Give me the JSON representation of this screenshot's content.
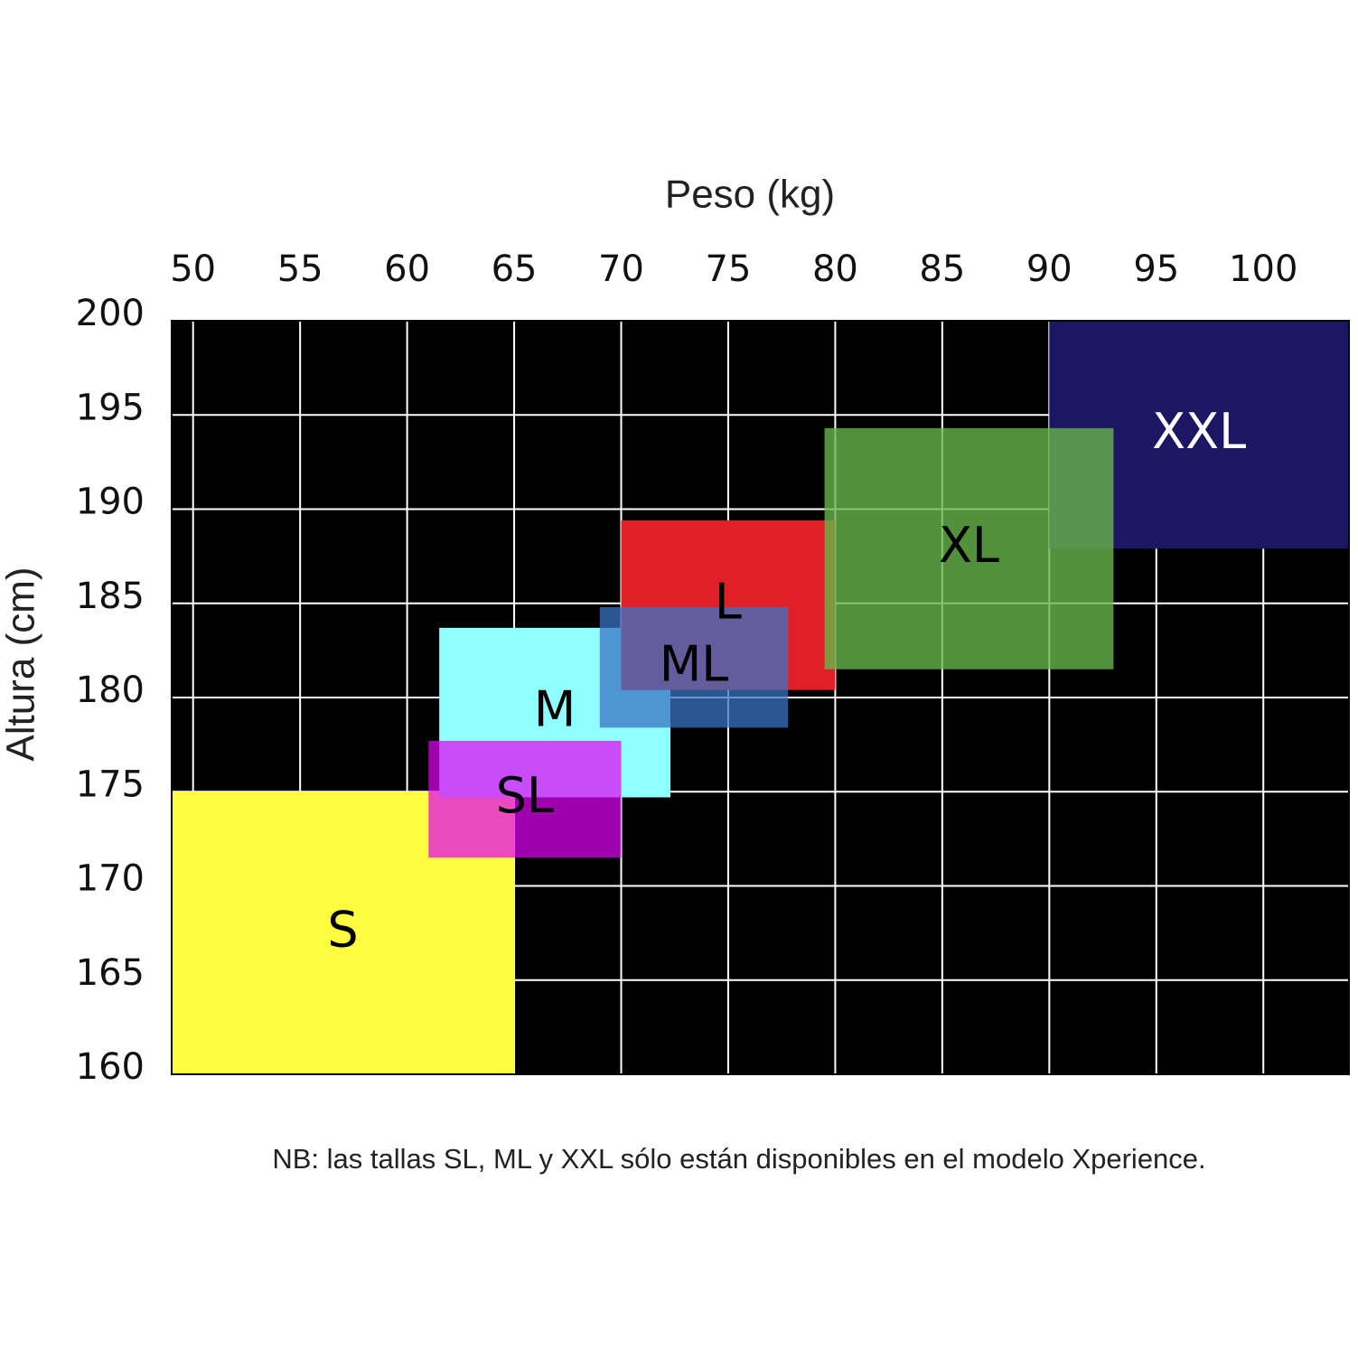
{
  "chart_data": {
    "type": "range",
    "x_label": "Peso (kg)",
    "y_label": "Altura (cm)",
    "note": "NB: las tallas SL, ML y XXL sólo están disponibles en el modelo Xperience.",
    "xlim": [
      49,
      104
    ],
    "xticks": [
      50,
      55,
      60,
      65,
      70,
      75,
      80,
      85,
      90,
      95,
      100
    ],
    "ylim": [
      160,
      200
    ],
    "yticks": [
      160,
      165,
      170,
      175,
      180,
      185,
      190,
      195,
      200
    ],
    "grid": true,
    "series": [
      {
        "name": "S",
        "color": "#fffc3f",
        "x": [
          49,
          65
        ],
        "y": [
          160,
          175
        ]
      },
      {
        "name": "M",
        "color": "#8fffff",
        "x": [
          61.5,
          72.3
        ],
        "y": [
          174.7,
          183.7
        ]
      },
      {
        "name": "SL",
        "color": "#e000f5",
        "x": [
          61,
          70
        ],
        "y": [
          171.5,
          177.7
        ]
      },
      {
        "name": "L",
        "color": "#e01f26",
        "x": [
          70,
          80
        ],
        "y": [
          180.4,
          189.4
        ]
      },
      {
        "name": "ML",
        "color": "#3b71c4",
        "x": [
          69,
          77.8
        ],
        "y": [
          178.4,
          184.8
        ]
      },
      {
        "name": "XXL",
        "color": "#1c1764",
        "x": [
          90,
          104
        ],
        "y": [
          187.9,
          200
        ]
      },
      {
        "name": "XL",
        "color": "#67b54a",
        "x": [
          79.5,
          93
        ],
        "y": [
          181.5,
          194.3
        ]
      }
    ]
  }
}
